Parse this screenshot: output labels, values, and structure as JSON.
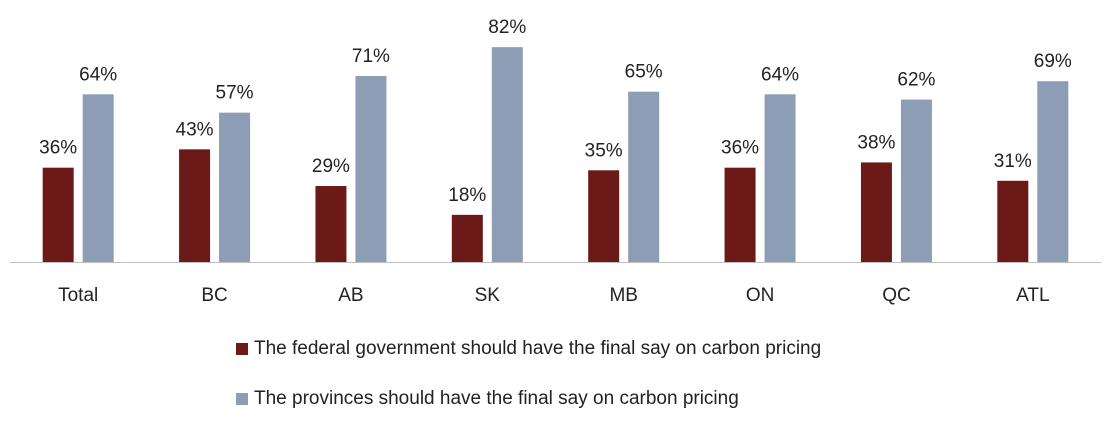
{
  "chart_data": {
    "type": "bar",
    "categories": [
      "Total",
      "BC",
      "AB",
      "SK",
      "MB",
      "ON",
      "QC",
      "ATL"
    ],
    "series": [
      {
        "name": "The federal government should have the final say on carbon pricing",
        "values": [
          36,
          43,
          29,
          18,
          35,
          36,
          38,
          31
        ],
        "labels": [
          "36%",
          "43%",
          "29%",
          "18%",
          "35%",
          "36%",
          "38%",
          "31%"
        ],
        "color": "#6B1A17"
      },
      {
        "name": "The provinces should have the final say on carbon pricing",
        "values": [
          64,
          57,
          71,
          82,
          65,
          64,
          62,
          69
        ],
        "labels": [
          "64%",
          "57%",
          "71%",
          "82%",
          "65%",
          "64%",
          "62%",
          "69%"
        ],
        "color": "#8C9DB5"
      }
    ],
    "ylim": [
      0,
      100
    ],
    "grid": false,
    "legend_position": "bottom"
  }
}
